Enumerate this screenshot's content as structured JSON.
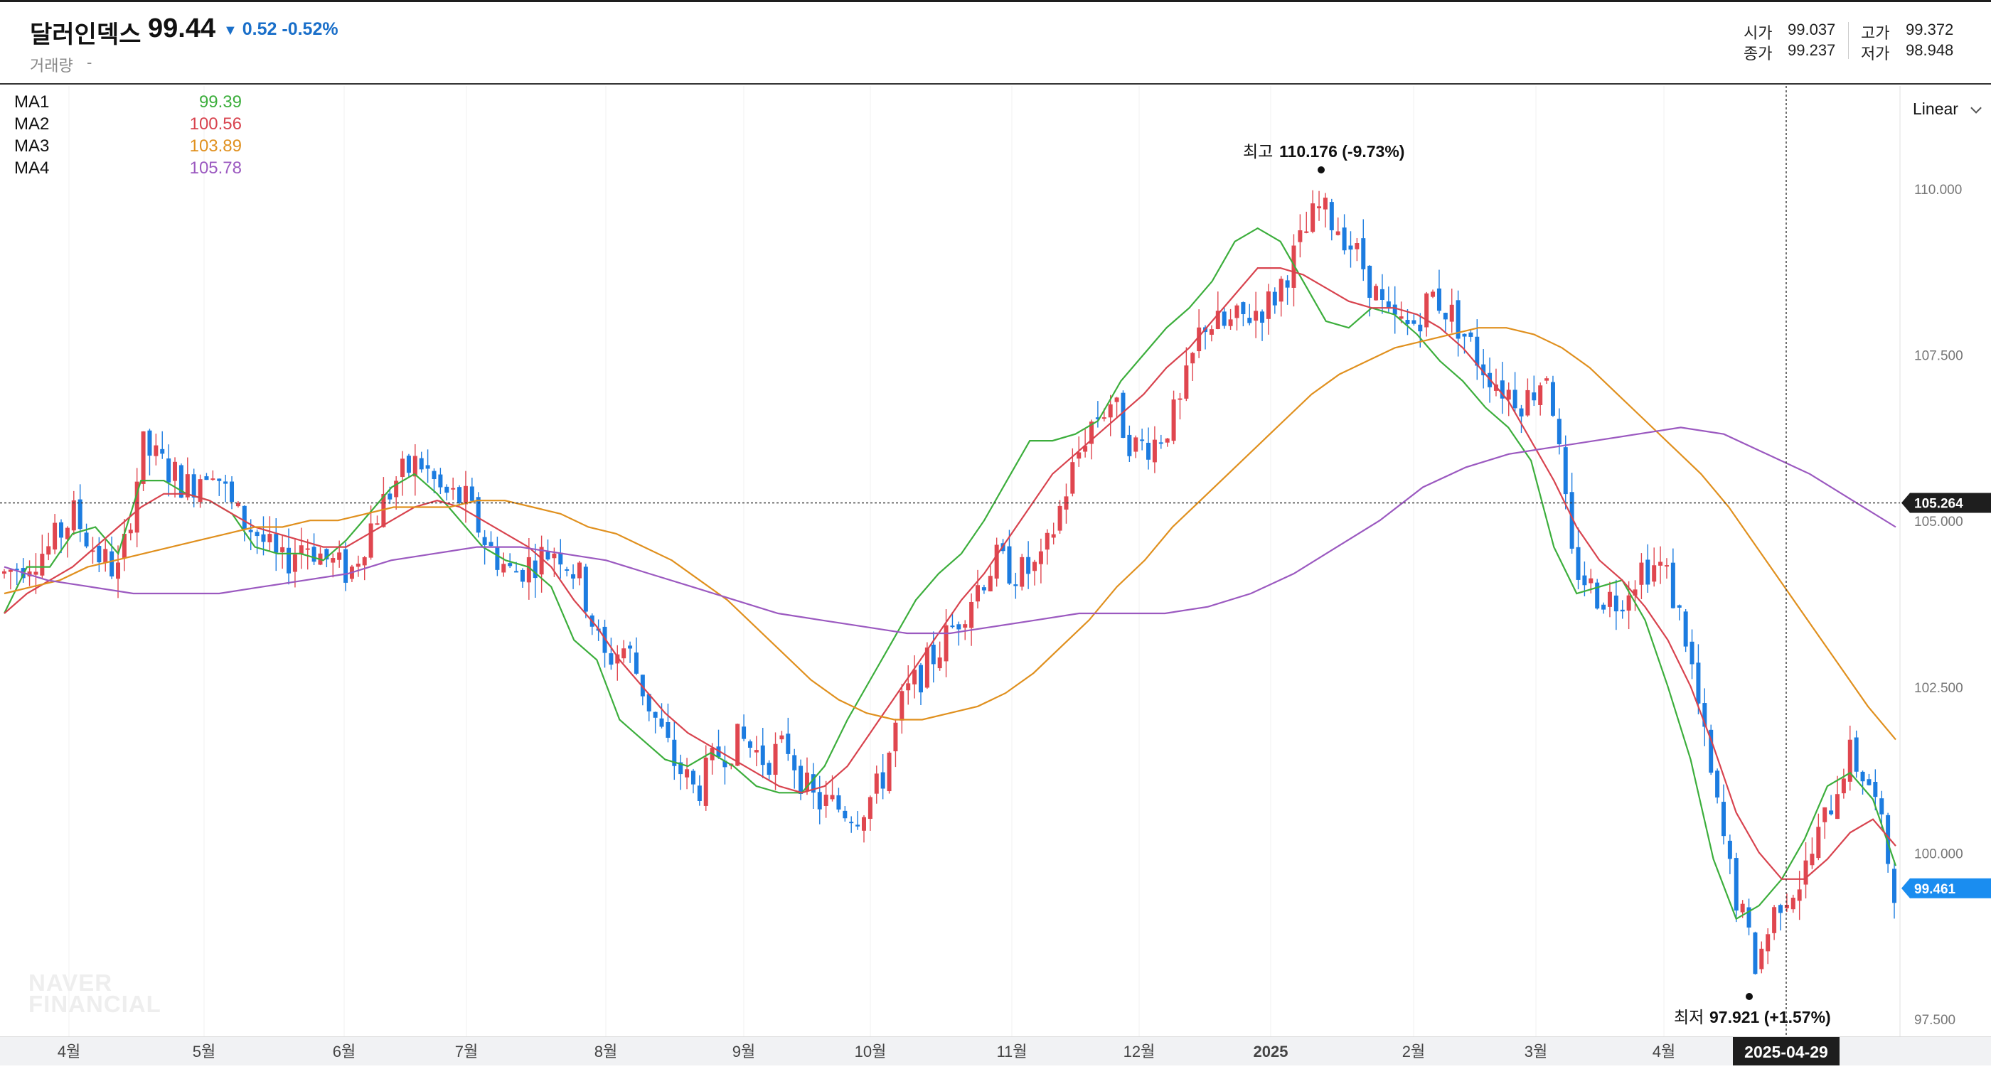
{
  "header": {
    "title": "달러인덱스",
    "price": "99.44",
    "change_arrow": "▼",
    "change": "0.52",
    "change_pct": "-0.52%",
    "volume_label": "거래량",
    "volume_value": "-",
    "ohlc": {
      "open_label": "시가",
      "open": "99.037",
      "high_label": "고가",
      "high": "99.372",
      "close_label": "종가",
      "close": "99.237",
      "low_label": "저가",
      "low": "98.948"
    }
  },
  "ma_legend": [
    {
      "name": "MA1",
      "value": "99.39",
      "color": "#3cae3c"
    },
    {
      "name": "MA2",
      "value": "100.56",
      "color": "#d8434e"
    },
    {
      "name": "MA3",
      "value": "103.89",
      "color": "#e0901e"
    },
    {
      "name": "MA4",
      "value": "105.78",
      "color": "#9b59c0"
    }
  ],
  "scale_mode": "Linear",
  "watermark": [
    "NAVER",
    "FINANCIAL"
  ],
  "colors": {
    "up": "#e0464f",
    "down": "#1c7ce0",
    "accent": "#1a8df0"
  },
  "chart_data": {
    "type": "candlestick",
    "title": "달러인덱스",
    "ylim": [
      97.5,
      110.0
    ],
    "y_ticks": [
      "110.000",
      "107.500",
      "105.000",
      "102.500",
      "100.000",
      "97.500"
    ],
    "x_labels": [
      "4월",
      "5월",
      "6월",
      "7월",
      "8월",
      "9월",
      "10월",
      "11월",
      "12월",
      "2025",
      "2월",
      "3월",
      "4월"
    ],
    "crosshair_price": "105.264",
    "crosshair_date": "2025-04-29",
    "last_price": "99.461",
    "high_annotation": {
      "label": "최고",
      "value": "110.176 (-9.73%)"
    },
    "low_annotation": {
      "label": "최저",
      "value": "97.921 (+1.57%)"
    },
    "series_path": [
      [
        "4월",
        104.2
      ],
      [
        null,
        104.4
      ],
      [
        null,
        104.6
      ],
      [
        null,
        105.1
      ],
      [
        null,
        104.5
      ],
      [
        null,
        104.2
      ],
      [
        "5월",
        106.1
      ],
      [
        null,
        105.8
      ],
      [
        null,
        105.5
      ],
      [
        null,
        105.9
      ],
      [
        null,
        105.1
      ],
      [
        null,
        104.8
      ],
      [
        null,
        104.3
      ],
      [
        "6월",
        104.7
      ],
      [
        null,
        104.4
      ],
      [
        null,
        104.2
      ],
      [
        null,
        105.0
      ],
      [
        null,
        105.6
      ],
      [
        null,
        105.9
      ],
      [
        null,
        105.4
      ],
      [
        "7월",
        105.3
      ],
      [
        null,
        104.6
      ],
      [
        null,
        104.2
      ],
      [
        null,
        104.4
      ],
      [
        null,
        104.6
      ],
      [
        null,
        104.1
      ],
      [
        "8월",
        102.9
      ],
      [
        null,
        103.1
      ],
      [
        null,
        102.2
      ],
      [
        null,
        101.4
      ],
      [
        null,
        100.9
      ],
      [
        null,
        101.5
      ],
      [
        "9월",
        101.7
      ],
      [
        null,
        101.4
      ],
      [
        null,
        101.6
      ],
      [
        null,
        100.8
      ],
      [
        null,
        100.7
      ],
      [
        null,
        100.6
      ],
      [
        null,
        101.0
      ],
      [
        "10월",
        102.3
      ],
      [
        null,
        102.8
      ],
      [
        null,
        103.3
      ],
      [
        null,
        103.9
      ],
      [
        null,
        104.4
      ],
      [
        null,
        104.2
      ],
      [
        null,
        104.3
      ],
      [
        "11월",
        105.4
      ],
      [
        null,
        106.4
      ],
      [
        null,
        106.8
      ],
      [
        null,
        106.1
      ],
      [
        null,
        106.2
      ],
      [
        null,
        106.7
      ],
      [
        "12월",
        108.0
      ],
      [
        null,
        107.9
      ],
      [
        null,
        108.1
      ],
      [
        null,
        108.3
      ],
      [
        null,
        109.0
      ],
      [
        null,
        109.7
      ],
      [
        null,
        109.4
      ],
      [
        "2025",
        108.8
      ],
      [
        null,
        108.0
      ],
      [
        null,
        107.9
      ],
      [
        null,
        108.4
      ],
      [
        null,
        108.0
      ],
      [
        null,
        107.4
      ],
      [
        "2월",
        107.0
      ],
      [
        null,
        106.8
      ],
      [
        null,
        107.3
      ],
      [
        null,
        104.4
      ],
      [
        null,
        103.9
      ],
      [
        null,
        103.8
      ],
      [
        null,
        104.3
      ],
      [
        null,
        104.3
      ],
      [
        "3월",
        103.2
      ],
      [
        null,
        101.2
      ],
      [
        null,
        99.5
      ],
      [
        null,
        98.3
      ],
      [
        null,
        99.3
      ],
      [
        null,
        99.6
      ],
      [
        null,
        100.5
      ],
      [
        null,
        101.5
      ],
      [
        null,
        101.0
      ],
      [
        null,
        99.5
      ]
    ],
    "series": [
      {
        "name": "MA1",
        "color": "#3cae3c",
        "values": [
          103.6,
          104.3,
          104.3,
          104.8,
          104.9,
          104.5,
          105.6,
          105.6,
          105.4,
          105.3,
          105.1,
          104.6,
          104.5,
          104.5,
          104.4,
          104.7,
          105.1,
          105.5,
          105.7,
          105.4,
          105.0,
          104.6,
          104.4,
          104.3,
          104.0,
          103.2,
          102.9,
          102.0,
          101.7,
          101.4,
          101.3,
          101.5,
          101.3,
          101.0,
          100.9,
          100.9,
          101.3,
          102.0,
          102.6,
          103.2,
          103.8,
          104.2,
          104.5,
          105.0,
          105.6,
          106.2,
          106.2,
          106.3,
          106.5,
          107.1,
          107.5,
          107.9,
          108.2,
          108.6,
          109.2,
          109.4,
          109.2,
          108.6,
          108.0,
          107.9,
          108.2,
          108.1,
          107.8,
          107.4,
          107.1,
          106.7,
          106.4,
          105.9,
          104.6,
          103.9,
          104.0,
          104.1,
          103.5,
          102.5,
          101.4,
          99.9,
          99.0,
          99.2,
          99.6,
          100.2,
          101.0,
          101.2,
          100.8,
          99.8
        ]
      },
      {
        "name": "MA2",
        "color": "#d8434e",
        "values": [
          103.6,
          103.9,
          104.1,
          104.3,
          104.6,
          104.9,
          105.2,
          105.4,
          105.4,
          105.3,
          105.1,
          104.9,
          104.8,
          104.7,
          104.6,
          104.6,
          104.8,
          105.0,
          105.2,
          105.3,
          105.2,
          105.0,
          104.8,
          104.6,
          104.3,
          103.8,
          103.4,
          102.9,
          102.5,
          102.1,
          101.8,
          101.6,
          101.4,
          101.2,
          101.0,
          100.9,
          101.0,
          101.3,
          101.8,
          102.3,
          102.8,
          103.3,
          103.8,
          104.2,
          104.7,
          105.2,
          105.7,
          106.0,
          106.3,
          106.6,
          106.9,
          107.3,
          107.6,
          108.0,
          108.4,
          108.8,
          108.8,
          108.7,
          108.5,
          108.3,
          108.2,
          108.2,
          108.1,
          107.9,
          107.6,
          107.2,
          106.8,
          106.2,
          105.6,
          104.9,
          104.4,
          104.1,
          103.7,
          103.2,
          102.5,
          101.6,
          100.6,
          100.0,
          99.6,
          99.6,
          99.9,
          100.3,
          100.5,
          100.1
        ]
      },
      {
        "name": "MA3",
        "color": "#e0901e",
        "values": [
          103.9,
          104.0,
          104.1,
          104.3,
          104.4,
          104.5,
          104.6,
          104.7,
          104.8,
          104.9,
          104.9,
          105.0,
          105.0,
          105.1,
          105.2,
          105.2,
          105.2,
          105.3,
          105.3,
          105.2,
          105.1,
          104.9,
          104.8,
          104.6,
          104.4,
          104.1,
          103.8,
          103.4,
          103.0,
          102.6,
          102.3,
          102.1,
          102.0,
          102.0,
          102.1,
          102.2,
          102.4,
          102.7,
          103.1,
          103.5,
          104.0,
          104.4,
          104.9,
          105.3,
          105.7,
          106.1,
          106.5,
          106.9,
          107.2,
          107.4,
          107.6,
          107.7,
          107.8,
          107.9,
          107.9,
          107.8,
          107.6,
          107.3,
          106.9,
          106.5,
          106.1,
          105.7,
          105.2,
          104.6,
          104.0,
          103.4,
          102.8,
          102.2,
          101.7
        ]
      },
      {
        "name": "MA4",
        "color": "#9b59c0",
        "values": [
          104.3,
          104.1,
          104.0,
          103.9,
          103.9,
          103.9,
          104.0,
          104.1,
          104.2,
          104.4,
          104.5,
          104.6,
          104.6,
          104.5,
          104.4,
          104.2,
          104.0,
          103.8,
          103.6,
          103.5,
          103.4,
          103.3,
          103.3,
          103.4,
          103.5,
          103.6,
          103.6,
          103.6,
          103.7,
          103.9,
          104.2,
          104.6,
          105.0,
          105.5,
          105.8,
          106.0,
          106.1,
          106.2,
          106.3,
          106.4,
          106.3,
          106.0,
          105.7,
          105.3,
          104.9
        ]
      }
    ]
  }
}
